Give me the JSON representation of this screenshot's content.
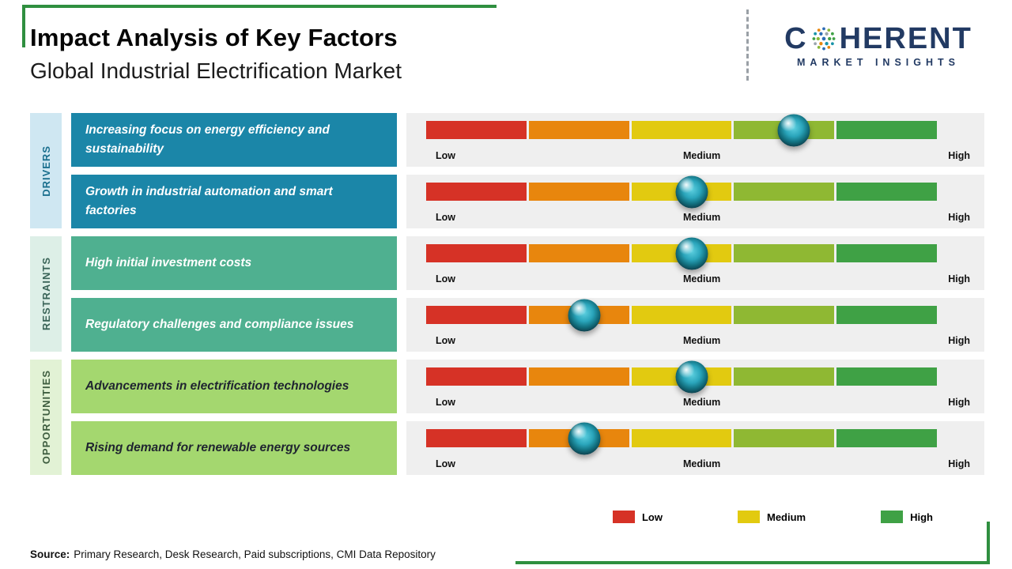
{
  "page": {
    "title": "Impact Analysis of Key Factors",
    "subtitle": "Global Industrial Electrification Market",
    "source_label": "Source:",
    "source_text": "Primary Research, Desk Research, Paid subscriptions, CMI Data Repository"
  },
  "logo": {
    "line1_prefix": "C",
    "line1_suffix": "HERENT",
    "line2": "MARKET INSIGHTS",
    "o_icon": "dotted-globe-o-icon",
    "brand_color": "#223a63"
  },
  "chart_data": {
    "type": "impact-slider",
    "title": "Impact Analysis of Key Factors",
    "subtitle": "Global Industrial Electrification Market",
    "scale": {
      "low": "Low",
      "medium": "Medium",
      "high": "High"
    },
    "scale_range": [
      0,
      1
    ],
    "segment_colors": [
      "#d63226",
      "#e8860d",
      "#e2ca10",
      "#8fb833",
      "#3fa145"
    ],
    "groups": [
      {
        "category": "DRIVERS",
        "box_color": "#1b86a8",
        "factors": [
          {
            "label": "Increasing focus on energy efficiency and sustainability",
            "impact_position": 0.72,
            "impact_level": "Medium-High"
          },
          {
            "label": "Growth in industrial automation and smart factories",
            "impact_position": 0.52,
            "impact_level": "Medium"
          }
        ]
      },
      {
        "category": "RESTRAINTS",
        "box_color": "#4fb090",
        "factors": [
          {
            "label": "High initial investment costs",
            "impact_position": 0.52,
            "impact_level": "Medium"
          },
          {
            "label": "Regulatory challenges and compliance issues",
            "impact_position": 0.31,
            "impact_level": "Low-Medium"
          }
        ]
      },
      {
        "category": "OPPORTUNITIES",
        "box_color": "#a4d76f",
        "factors": [
          {
            "label": "Advancements in electrification technologies",
            "impact_position": 0.52,
            "impact_level": "Medium"
          },
          {
            "label": "Rising demand for renewable energy sources",
            "impact_position": 0.31,
            "impact_level": "Low-Medium"
          }
        ]
      }
    ],
    "legend": [
      {
        "label": "Low",
        "color": "#d63226"
      },
      {
        "label": "Medium",
        "color": "#e2ca10"
      },
      {
        "label": "High",
        "color": "#3fa145"
      }
    ],
    "legend_position": "bottom-right"
  }
}
